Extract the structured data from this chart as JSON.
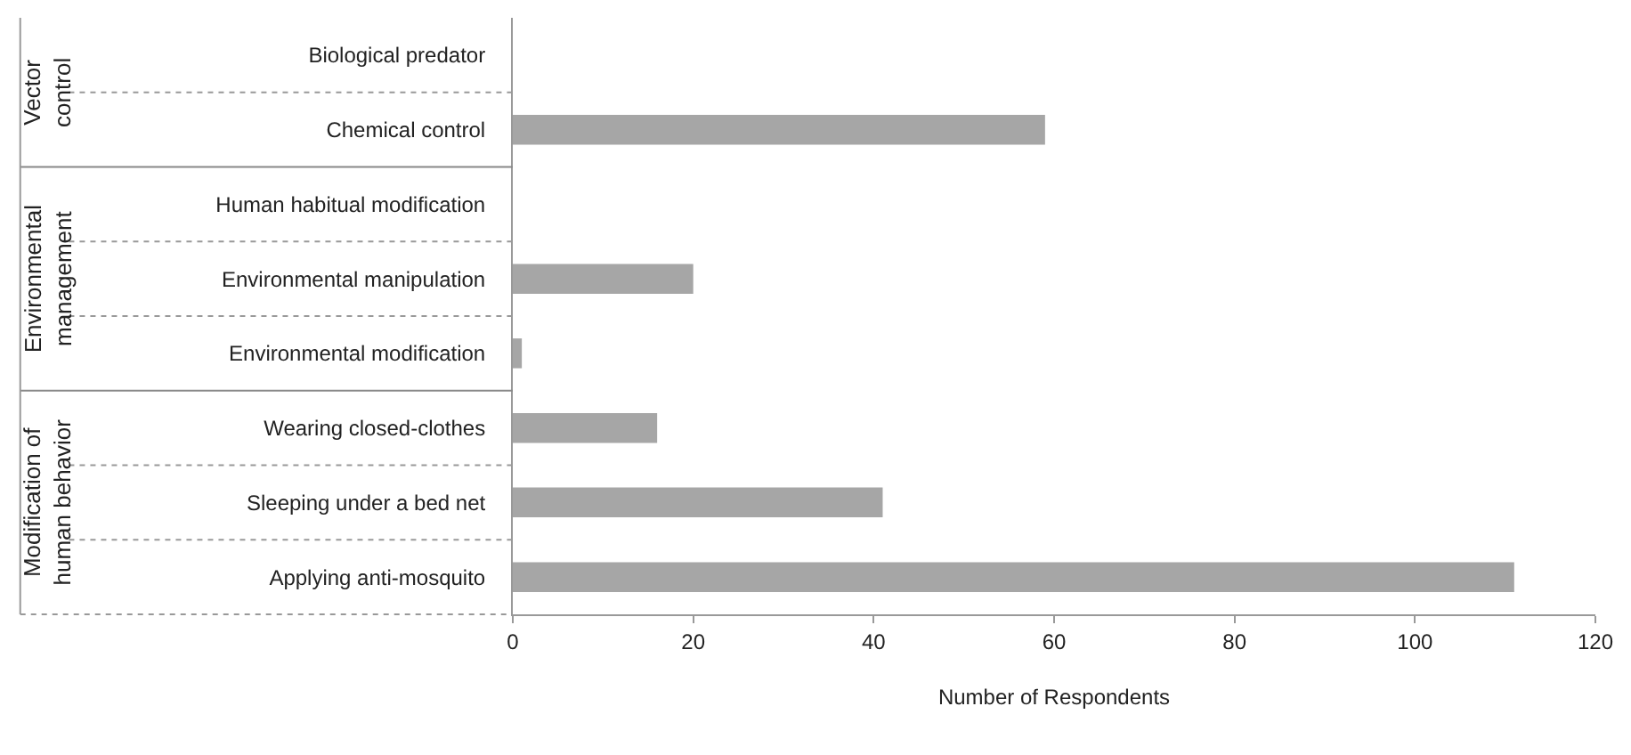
{
  "chart_data": {
    "type": "bar",
    "orientation": "horizontal",
    "xlabel": "Number of Respondents",
    "categories": [
      "Biological predator",
      "Chemical control",
      "Human habitual modification",
      "Environmental manipulation",
      "Environmental modification",
      "Wearing closed-clothes",
      "Sleeping under a bed net",
      "Applying anti-mosquito"
    ],
    "values": [
      0,
      59,
      0,
      20,
      1,
      16,
      41,
      111
    ],
    "color": "#a6a6a6",
    "xlim": [
      0,
      120
    ],
    "xticks": [
      0,
      20,
      40,
      60,
      80,
      100,
      120
    ],
    "annotations": [
      "Vector control",
      "Environmental management",
      "Modification of human behavior"
    ]
  }
}
